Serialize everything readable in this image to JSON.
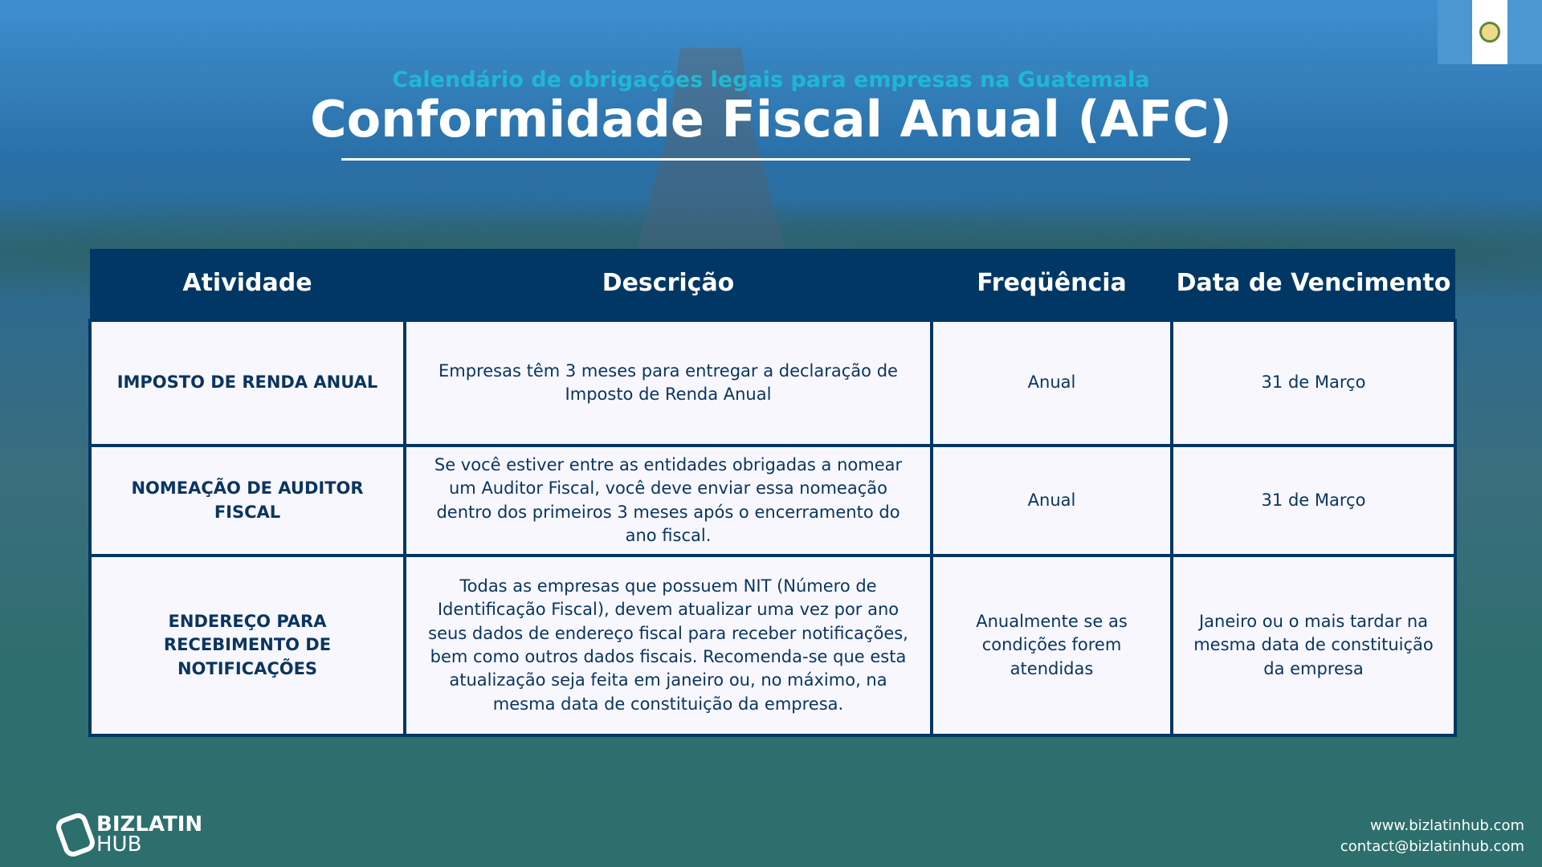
{
  "header": {
    "subtitle": "Calendário de obrigações legais para empresas na Guatemala",
    "title": "Conformidade Fiscal Anual (AFC)"
  },
  "flag": {
    "colors": [
      "#4a97d4",
      "#ffffff",
      "#4a97d4"
    ],
    "icon": "guatemala-flag-icon"
  },
  "table": {
    "columns": [
      "Atividade",
      "Descrição",
      "Freqüência",
      "Data de Vencimento"
    ],
    "rows": [
      {
        "activity": "IMPOSTO DE RENDA ANUAL",
        "description": "Empresas têm 3 meses para entregar a declaração de Imposto de Renda Anual",
        "frequency": "Anual",
        "due": "31 de Março"
      },
      {
        "activity": "NOMEAÇÃO DE AUDITOR FISCAL",
        "description": "Se você estiver entre as entidades obrigadas a nomear um Auditor Fiscal, você deve enviar essa nomeação dentro dos primeiros 3 meses após o encerramento do ano fiscal.",
        "frequency": "Anual",
        "due": "31 de Março"
      },
      {
        "activity": "ENDEREÇO PARA RECEBIMENTO DE NOTIFICAÇÕES",
        "description": "Todas as empresas que possuem NIT (Número de Identificação Fiscal), devem atualizar uma vez por ano seus dados de endereço fiscal para receber notificações, bem como outros dados fiscais. Recomenda-se que esta atualização seja feita em janeiro ou, no máximo, na mesma data de constituição da empresa.",
        "frequency": "Anualmente se as condições forem atendidas",
        "due": "Janeiro ou o mais tardar na mesma data de constituição da empresa"
      }
    ]
  },
  "footer": {
    "logo_line1": "BIZLATIN",
    "logo_line2": "HUB",
    "website": "www.bizlatinhub.com",
    "email": "contact@bizlatinhub.com"
  },
  "colors": {
    "header_bg": "#003764",
    "accent": "#1fb8d4",
    "cell_bg": "#f7f7fd"
  }
}
